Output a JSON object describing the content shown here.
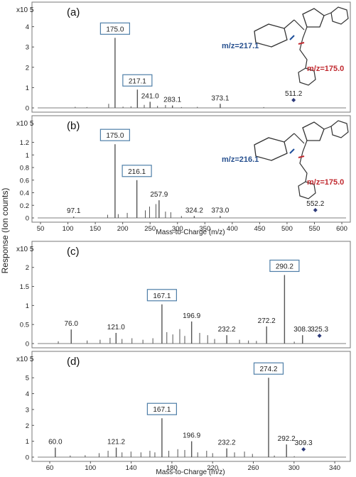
{
  "shared": {
    "y_axis_label": "Response (Ion counts)",
    "x_axis_label": "Mass-to-Charge (m/z)",
    "marker_color": "#2d3a7a",
    "line_color": "#555555",
    "box_color": "#4f7fa8",
    "label_blue": "#27508f",
    "label_red": "#c0282e"
  },
  "chart_data": [
    {
      "type": "bar",
      "panel": "(a)",
      "scale_label": "x10 5",
      "xlim": [
        40,
        610
      ],
      "ylim": [
        0,
        4.3
      ],
      "ytick_labels": [
        "0",
        "1",
        "2",
        "3",
        "4"
      ],
      "show_xticks": false,
      "xtick_labels": [],
      "peaks": [
        {
          "x": 175.0,
          "y": 3.45,
          "label": "175.0",
          "boxed": true
        },
        {
          "x": 217.1,
          "y": 0.9,
          "label": "217.1",
          "boxed": true
        },
        {
          "x": 241.0,
          "y": 0.3,
          "label": "241.0",
          "boxed": false
        },
        {
          "x": 283.1,
          "y": 0.12,
          "label": "283.1",
          "boxed": false
        },
        {
          "x": 373.1,
          "y": 0.2,
          "label": "373.1",
          "boxed": false
        },
        {
          "x": 511.2,
          "y": 0.0,
          "label": "511.2",
          "boxed": false,
          "marker": true
        }
      ],
      "minor_peaks": [
        [
          100,
          0.05
        ],
        [
          122,
          0.04
        ],
        [
          163,
          0.2
        ],
        [
          190,
          0.06
        ],
        [
          205,
          0.08
        ],
        [
          230,
          0.15
        ],
        [
          255,
          0.1
        ],
        [
          270,
          0.14
        ],
        [
          300,
          0.04
        ],
        [
          330,
          0.05
        ],
        [
          455,
          0.04
        ]
      ],
      "structure": {
        "fragment_label_1": "m/z=217.1",
        "fragment_label_2": "m/z=175.0"
      }
    },
    {
      "type": "bar",
      "panel": "(b)",
      "scale_label": "x10 5",
      "xlim": [
        40,
        610
      ],
      "ylim": [
        0,
        1.33
      ],
      "ytick_labels": [
        "0",
        "0.2",
        "0.4",
        "0.6",
        "0.8",
        "1",
        "1.2"
      ],
      "show_xticks": true,
      "xtick_labels": [
        "50",
        "100",
        "150",
        "200",
        "250",
        "300",
        "350",
        "400",
        "450",
        "500",
        "550",
        "600"
      ],
      "peaks": [
        {
          "x": 97.1,
          "y": 0.02,
          "label": "97.1",
          "boxed": false
        },
        {
          "x": 175.0,
          "y": 1.17,
          "label": "175.0",
          "boxed": true
        },
        {
          "x": 216.1,
          "y": 0.6,
          "label": "216.1",
          "boxed": true
        },
        {
          "x": 257.9,
          "y": 0.28,
          "label": "257.9",
          "boxed": false
        },
        {
          "x": 324.2,
          "y": 0.03,
          "label": "324.2",
          "boxed": false
        },
        {
          "x": 373.0,
          "y": 0.03,
          "label": "373.0",
          "boxed": false
        },
        {
          "x": 552.2,
          "y": 0.0,
          "label": "552.2",
          "boxed": false,
          "marker": true
        }
      ],
      "minor_peaks": [
        [
          161,
          0.05
        ],
        [
          181,
          0.06
        ],
        [
          198,
          0.08
        ],
        [
          232,
          0.12
        ],
        [
          240,
          0.18
        ],
        [
          252,
          0.22
        ],
        [
          270,
          0.1
        ],
        [
          280,
          0.09
        ],
        [
          300,
          0.03
        ]
      ],
      "structure": {
        "fragment_label_1": "m/z=216.1",
        "fragment_label_2": "m/z=175.0"
      }
    },
    {
      "type": "bar",
      "panel": "(c)",
      "scale_label": "x10 5",
      "xlim": [
        48,
        352
      ],
      "ylim": [
        0,
        2.2
      ],
      "ytick_labels": [
        "0",
        "0.5",
        "1",
        "1.5",
        "2"
      ],
      "show_xticks": false,
      "xtick_labels": [],
      "peaks": [
        {
          "x": 76.0,
          "y": 0.37,
          "label": "76.0",
          "boxed": false
        },
        {
          "x": 121.0,
          "y": 0.28,
          "label": "121.0",
          "boxed": false
        },
        {
          "x": 167.1,
          "y": 1.03,
          "label": "167.1",
          "boxed": true
        },
        {
          "x": 196.9,
          "y": 0.58,
          "label": "196.9",
          "boxed": false
        },
        {
          "x": 232.2,
          "y": 0.22,
          "label": "232.2",
          "boxed": false
        },
        {
          "x": 272.2,
          "y": 0.45,
          "label": "272.2",
          "boxed": false
        },
        {
          "x": 290.2,
          "y": 1.8,
          "label": "290.2",
          "boxed": true
        },
        {
          "x": 308.3,
          "y": 0.22,
          "label": "308.3",
          "boxed": false
        },
        {
          "x": 325.3,
          "y": 0.0,
          "label": "325.3",
          "boxed": false,
          "marker": true
        }
      ],
      "minor_peaks": [
        [
          63,
          0.06
        ],
        [
          92,
          0.08
        ],
        [
          105,
          0.1
        ],
        [
          115,
          0.15
        ],
        [
          127,
          0.12
        ],
        [
          137,
          0.14
        ],
        [
          148,
          0.1
        ],
        [
          158,
          0.14
        ],
        [
          172,
          0.3
        ],
        [
          178,
          0.24
        ],
        [
          185,
          0.38
        ],
        [
          190,
          0.2
        ],
        [
          205,
          0.28
        ],
        [
          213,
          0.22
        ],
        [
          220,
          0.12
        ],
        [
          245,
          0.1
        ],
        [
          254,
          0.08
        ],
        [
          262,
          0.07
        ],
        [
          300,
          0.05
        ]
      ]
    },
    {
      "type": "bar",
      "panel": "(d)",
      "scale_label": "x10 5",
      "xlim": [
        48,
        352
      ],
      "ylim": [
        0,
        5.5
      ],
      "ytick_labels": [
        "0",
        "1",
        "2",
        "3",
        "4",
        "5"
      ],
      "show_xticks": true,
      "xtick_labels": [
        "60",
        "100",
        "140",
        "180",
        "220",
        "260",
        "300",
        "340"
      ],
      "peaks": [
        {
          "x": 60.0,
          "y": 0.6,
          "label": "60.0",
          "boxed": false
        },
        {
          "x": 121.2,
          "y": 0.6,
          "label": "121.2",
          "boxed": false
        },
        {
          "x": 167.1,
          "y": 2.45,
          "label": "167.1",
          "boxed": true
        },
        {
          "x": 196.9,
          "y": 1.0,
          "label": "196.9",
          "boxed": false
        },
        {
          "x": 232.2,
          "y": 0.55,
          "label": "232.2",
          "boxed": false
        },
        {
          "x": 274.2,
          "y": 5.0,
          "label": "274.2",
          "boxed": true
        },
        {
          "x": 292.2,
          "y": 0.8,
          "label": "292.2",
          "boxed": false
        },
        {
          "x": 309.3,
          "y": 0.0,
          "label": "309.3",
          "boxed": false,
          "marker": true
        }
      ],
      "minor_peaks": [
        [
          75,
          0.1
        ],
        [
          90,
          0.12
        ],
        [
          104,
          0.25
        ],
        [
          113,
          0.4
        ],
        [
          127,
          0.3
        ],
        [
          136,
          0.35
        ],
        [
          146,
          0.3
        ],
        [
          155,
          0.4
        ],
        [
          160,
          0.3
        ],
        [
          174,
          0.4
        ],
        [
          183,
          0.5
        ],
        [
          190,
          0.45
        ],
        [
          203,
          0.3
        ],
        [
          212,
          0.4
        ],
        [
          218,
          0.25
        ],
        [
          240,
          0.3
        ],
        [
          250,
          0.35
        ],
        [
          258,
          0.2
        ],
        [
          280,
          0.1
        ],
        [
          300,
          0.06
        ]
      ]
    }
  ]
}
